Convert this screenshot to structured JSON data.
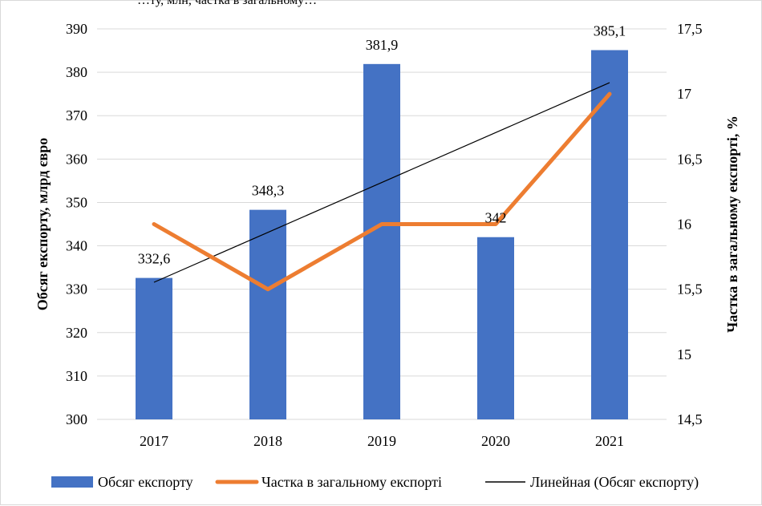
{
  "top_text": "…ту, млн, частка в загальному…",
  "chart_data": {
    "type": "bar",
    "categories": [
      "2017",
      "2018",
      "2019",
      "2020",
      "2021"
    ],
    "series": [
      {
        "name": "Обсяг експорту",
        "type": "bar",
        "axis": "left",
        "values": [
          332.6,
          348.3,
          381.9,
          342,
          385.1
        ],
        "labels": [
          "332,6",
          "348,3",
          "381,9",
          "342",
          "385,1"
        ],
        "color": "#4472C4"
      },
      {
        "name": "Частка в загальному експорті",
        "type": "line",
        "axis": "right",
        "values": [
          16,
          15.5,
          16,
          16,
          17
        ],
        "color": "#ED7D31"
      },
      {
        "name": "Линейная (Обсяг експорту)",
        "type": "trendline",
        "axis": "left",
        "values": [
          331.6,
          343.1,
          354.6,
          366.1,
          377.6
        ],
        "color": "#000000"
      }
    ],
    "ylabel": "Обсяг експорту, млрд євро",
    "y2label": "Частка в загальному експорті, %",
    "ylim": [
      300,
      390
    ],
    "y2lim": [
      14.5,
      17.5
    ],
    "yticks": [
      "300",
      "310",
      "320",
      "330",
      "340",
      "350",
      "360",
      "370",
      "380",
      "390"
    ],
    "y2ticks": [
      "14,5",
      "15",
      "15,5",
      "16",
      "16,5",
      "17",
      "17,5"
    ],
    "grid": true,
    "legend": "bottom"
  }
}
